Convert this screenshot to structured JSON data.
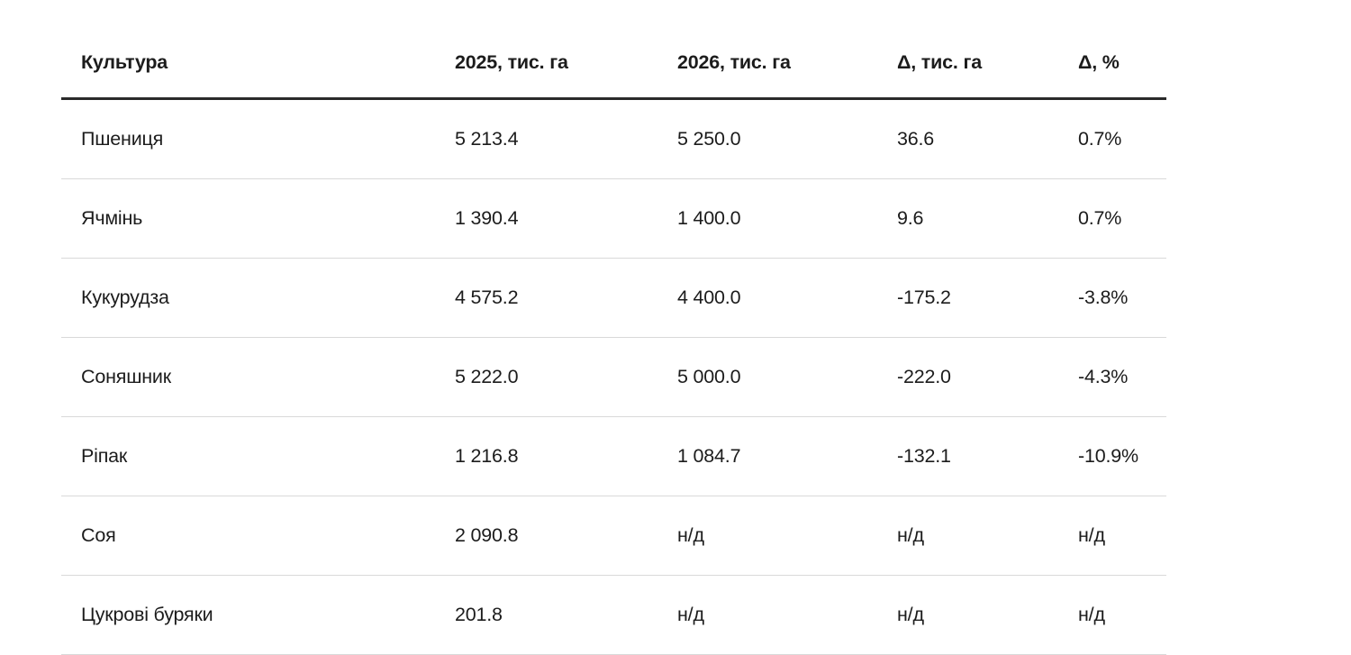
{
  "chart_data": {
    "type": "table",
    "columns": [
      "Культура",
      "2025, тис. га",
      "2026, тис. га",
      "Δ, тис. га",
      "Δ, %"
    ],
    "rows": [
      {
        "culture": "Пшениця",
        "y2025": "5 213.4",
        "y2026": "5 250.0",
        "delta": "36.6",
        "delta_pct": "0.7%"
      },
      {
        "culture": "Ячмінь",
        "y2025": "1 390.4",
        "y2026": "1 400.0",
        "delta": "9.6",
        "delta_pct": "0.7%"
      },
      {
        "culture": "Кукурудза",
        "y2025": "4 575.2",
        "y2026": "4 400.0",
        "delta": "-175.2",
        "delta_pct": "-3.8%"
      },
      {
        "culture": "Соняшник",
        "y2025": "5 222.0",
        "y2026": "5 000.0",
        "delta": "-222.0",
        "delta_pct": "-4.3%"
      },
      {
        "culture": "Ріпак",
        "y2025": "1 216.8",
        "y2026": "1 084.7",
        "delta": "-132.1",
        "delta_pct": "-10.9%"
      },
      {
        "culture": "Соя",
        "y2025": "2 090.8",
        "y2026": "н/д",
        "delta": "н/д",
        "delta_pct": "н/д"
      },
      {
        "culture": "Цукрові буряки",
        "y2025": "201.8",
        "y2026": "н/д",
        "delta": "н/д",
        "delta_pct": "н/д"
      }
    ],
    "na_value": "н/д",
    "layout": {
      "header_rule_color": "#2a2a2a",
      "row_rule_color": "#d9d9d9",
      "text_color": "#1c1c1c",
      "background_color": "#ffffff"
    }
  }
}
